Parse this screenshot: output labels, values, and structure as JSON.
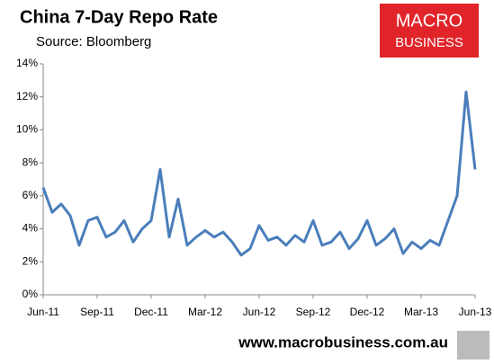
{
  "chart_data": {
    "type": "line",
    "title": "China 7-Day Repo Rate",
    "subtitle": "Source: Bloomberg",
    "logo": [
      "MACRO",
      "BUSINESS"
    ],
    "footer": "www.macrobusiness.com.au",
    "categories": [
      "Jun-11",
      null,
      null,
      null,
      null,
      null,
      "Sep-11",
      null,
      null,
      null,
      null,
      null,
      "Dec-11",
      null,
      null,
      null,
      null,
      null,
      "Mar-12",
      null,
      null,
      null,
      null,
      null,
      "Jun-12",
      null,
      null,
      null,
      null,
      null,
      "Sep-12",
      null,
      null,
      null,
      null,
      null,
      "Dec-12",
      null,
      null,
      null,
      null,
      null,
      "Mar-13",
      null,
      null,
      null,
      null,
      null,
      "Jun-13"
    ],
    "series": [
      {
        "name": "7-Day Repo Rate",
        "color": "#4a7ebb",
        "values": [
          6.5,
          5.0,
          5.5,
          4.8,
          3.0,
          4.5,
          4.7,
          3.5,
          3.8,
          4.5,
          3.2,
          4.0,
          4.5,
          7.6,
          3.5,
          5.8,
          3.0,
          3.5,
          3.9,
          3.5,
          3.8,
          3.2,
          2.4,
          2.8,
          4.2,
          3.3,
          3.5,
          3.0,
          3.6,
          3.2,
          4.5,
          3.0,
          3.2,
          3.8,
          2.8,
          3.4,
          4.5,
          3.0,
          3.4,
          4.0,
          2.5,
          3.2,
          2.8,
          3.3,
          3.0,
          4.5,
          6.0,
          12.3,
          7.6
        ]
      }
    ],
    "ylim": [
      0,
      14
    ],
    "yticks": [
      {
        "value": 0,
        "label": "0%"
      },
      {
        "value": 2,
        "label": "2%"
      },
      {
        "value": 4,
        "label": "4%"
      },
      {
        "value": 6,
        "label": "6%"
      },
      {
        "value": 8,
        "label": "8%"
      },
      {
        "value": 10,
        "label": "10%"
      },
      {
        "value": 12,
        "label": "12%"
      },
      {
        "value": 14,
        "label": "14%"
      }
    ],
    "grid": false
  }
}
